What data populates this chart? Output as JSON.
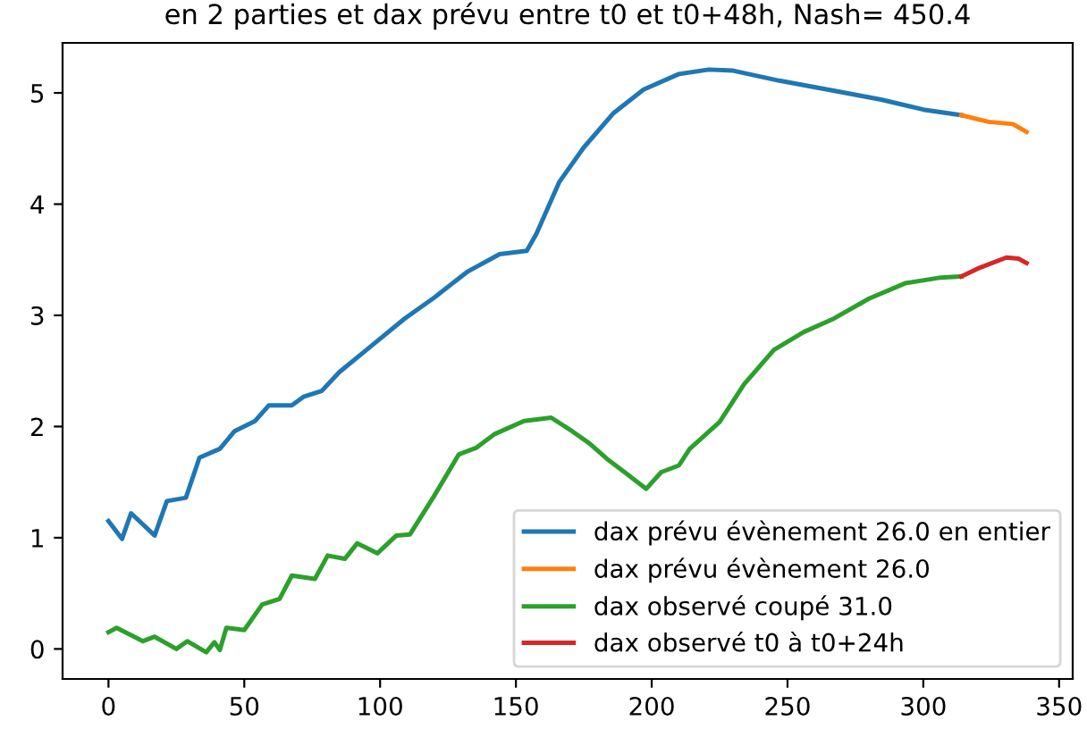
{
  "chart_data": {
    "type": "line",
    "title": "en 2 parties et dax prévu entre t0 et t0+48h, Nash= 450.4",
    "xlim": [
      -16.9,
      355
    ],
    "xticks": [
      0,
      50,
      100,
      150,
      200,
      250,
      300,
      350
    ],
    "ylim": [
      -0.27,
      5.45
    ],
    "yticks": [
      0,
      1,
      2,
      3,
      4,
      5
    ],
    "grid": false,
    "legend": "bottom right",
    "marker": "none",
    "line_style": "solid",
    "series": [
      {
        "name": "dax prévu évènement 26.0 en entier",
        "color": "#1f77b4",
        "x": [
          0,
          5,
          8.3,
          17,
          21.5,
          28.5,
          33.5,
          41,
          46.5,
          54,
          59,
          67.5,
          72,
          78.5,
          85,
          96,
          109,
          120,
          132,
          144,
          154,
          157.5,
          166,
          175,
          186,
          197,
          210,
          221,
          230,
          247,
          267,
          284.5,
          300,
          314
        ],
        "values": [
          1.15,
          0.99,
          1.22,
          1.02,
          1.33,
          1.36,
          1.72,
          1.8,
          1.96,
          2.05,
          2.19,
          2.19,
          2.27,
          2.32,
          2.49,
          2.71,
          2.97,
          3.16,
          3.39,
          3.55,
          3.58,
          3.73,
          4.2,
          4.51,
          4.82,
          5.03,
          5.17,
          5.21,
          5.2,
          5.11,
          5.02,
          4.94,
          4.85,
          4.8
        ]
      },
      {
        "name": "dax prévu évènement 26.0",
        "color": "#ff7f0e",
        "x": [
          314,
          324,
          333,
          338
        ],
        "values": [
          4.8,
          4.74,
          4.72,
          4.65
        ]
      },
      {
        "name": "dax observé coupé 31.0",
        "color": "#2ca02c",
        "x": [
          0,
          3,
          12.7,
          17,
          25,
          29,
          36,
          39,
          41,
          43.4,
          50,
          56.6,
          63,
          67.5,
          76,
          80.7,
          87,
          91.6,
          99,
          106,
          111,
          120,
          129,
          135.5,
          142,
          153,
          163,
          170.6,
          177,
          184,
          190,
          198,
          203.5,
          210,
          214,
          225,
          234,
          245,
          256,
          267,
          280,
          293.5,
          306.5,
          314
        ],
        "values": [
          0.15,
          0.19,
          0.07,
          0.11,
          0.0,
          0.07,
          -0.03,
          0.06,
          -0.01,
          0.19,
          0.17,
          0.4,
          0.45,
          0.66,
          0.63,
          0.84,
          0.81,
          0.95,
          0.86,
          1.02,
          1.03,
          1.38,
          1.75,
          1.81,
          1.93,
          2.05,
          2.08,
          1.96,
          1.85,
          1.7,
          1.59,
          1.44,
          1.59,
          1.65,
          1.8,
          2.04,
          2.38,
          2.69,
          2.85,
          2.97,
          3.15,
          3.29,
          3.34,
          3.35
        ]
      },
      {
        "name": "dax observé t0 à t0+24h",
        "color": "#d62728",
        "x": [
          314,
          320,
          330.6,
          335,
          338
        ],
        "values": [
          3.35,
          3.42,
          3.52,
          3.51,
          3.47
        ]
      }
    ]
  }
}
